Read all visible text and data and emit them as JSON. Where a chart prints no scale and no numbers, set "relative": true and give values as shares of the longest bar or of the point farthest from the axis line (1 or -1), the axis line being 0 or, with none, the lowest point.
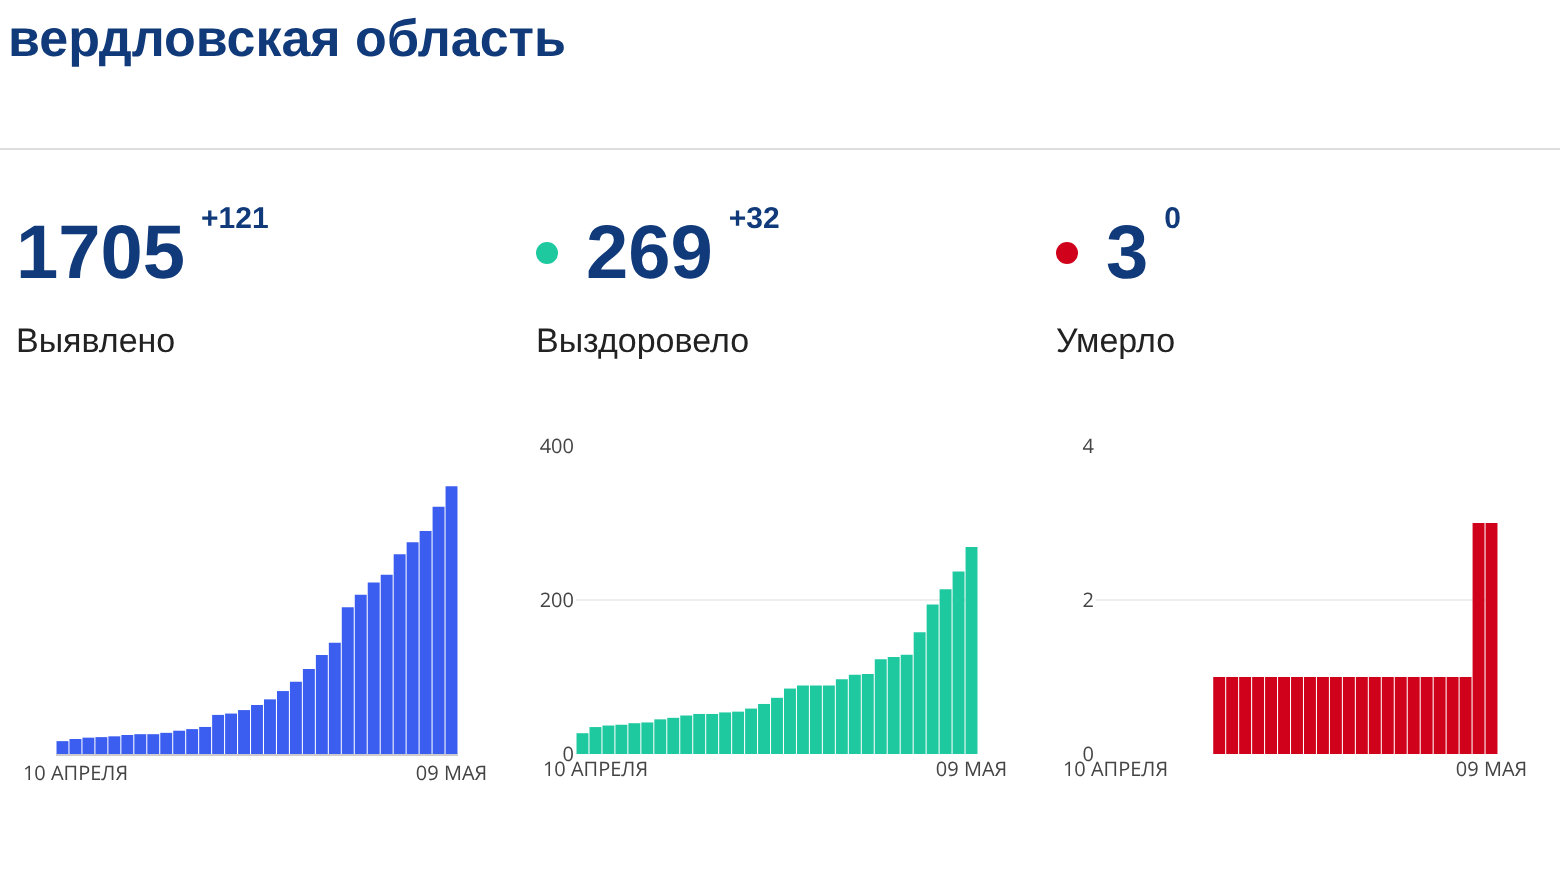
{
  "chart_data": [
    {
      "type": "bar",
      "title": "вердловская область",
      "annotations": [
        "1705",
        "+121"
      ],
      "subtitle": "Выявлено",
      "relative": true,
      "tick_labels": "x",
      "grid": false,
      "categories": [
        null,
        "10 АПРЕЛЯ",
        null,
        null,
        null,
        null,
        null,
        null,
        null,
        null,
        null,
        null,
        null,
        null,
        null,
        null,
        null,
        null,
        null,
        null,
        null,
        null,
        null,
        null,
        null,
        null,
        null,
        null,
        null,
        null,
        "09 МАЯ"
      ],
      "series": [
        {
          "color": "#3b5ef0",
          "values": [
            0.048,
            0.056,
            0.061,
            0.063,
            0.066,
            0.071,
            0.074,
            0.074,
            0.079,
            0.087,
            0.093,
            0.101,
            0.146,
            0.151,
            0.164,
            0.183,
            0.204,
            0.235,
            0.27,
            0.317,
            0.37,
            0.415,
            0.548,
            0.595,
            0.64,
            0.669,
            0.746,
            0.791,
            0.833,
            0.923,
            1
          ]
        }
      ]
    },
    {
      "type": "bar",
      "annotations": [
        "269",
        "+32"
      ],
      "subtitle": "Выздоровело",
      "ylim": [
        0,
        400
      ],
      "yticks": [
        0,
        200,
        400
      ],
      "grid": "y",
      "categories": [
        null,
        "10 АПРЕЛЯ",
        null,
        null,
        null,
        null,
        null,
        null,
        null,
        null,
        null,
        null,
        null,
        null,
        null,
        null,
        null,
        null,
        null,
        null,
        null,
        null,
        null,
        null,
        null,
        null,
        null,
        null,
        null,
        null,
        "09 МАЯ"
      ],
      "series": [
        {
          "color": "#1fc9a0",
          "values": [
            27,
            35,
            37,
            38,
            40,
            41,
            45,
            47,
            50,
            52,
            52,
            54,
            55,
            59,
            65,
            73,
            85,
            89,
            89,
            89,
            97,
            103,
            104,
            123,
            126,
            129,
            158,
            194,
            214,
            237,
            269
          ]
        }
      ]
    },
    {
      "type": "bar",
      "annotations": [
        "3",
        "0"
      ],
      "subtitle": "Умерло",
      "ylim": [
        0,
        4
      ],
      "yticks": [
        0,
        2,
        4
      ],
      "grid": "y",
      "categories": [
        null,
        "10 АПРЕЛЯ",
        null,
        null,
        null,
        null,
        null,
        null,
        null,
        null,
        null,
        null,
        null,
        null,
        null,
        null,
        null,
        null,
        null,
        null,
        null,
        null,
        null,
        null,
        null,
        null,
        null,
        null,
        null,
        null,
        "09 МАЯ"
      ],
      "series": [
        {
          "color": "#d0021b",
          "values": [
            0,
            0,
            0,
            0,
            0,
            0,
            0,
            0,
            0,
            1,
            1,
            1,
            1,
            1,
            1,
            1,
            1,
            1,
            1,
            1,
            1,
            1,
            1,
            1,
            1,
            1,
            1,
            1,
            1,
            3,
            3
          ]
        }
      ]
    }
  ]
}
